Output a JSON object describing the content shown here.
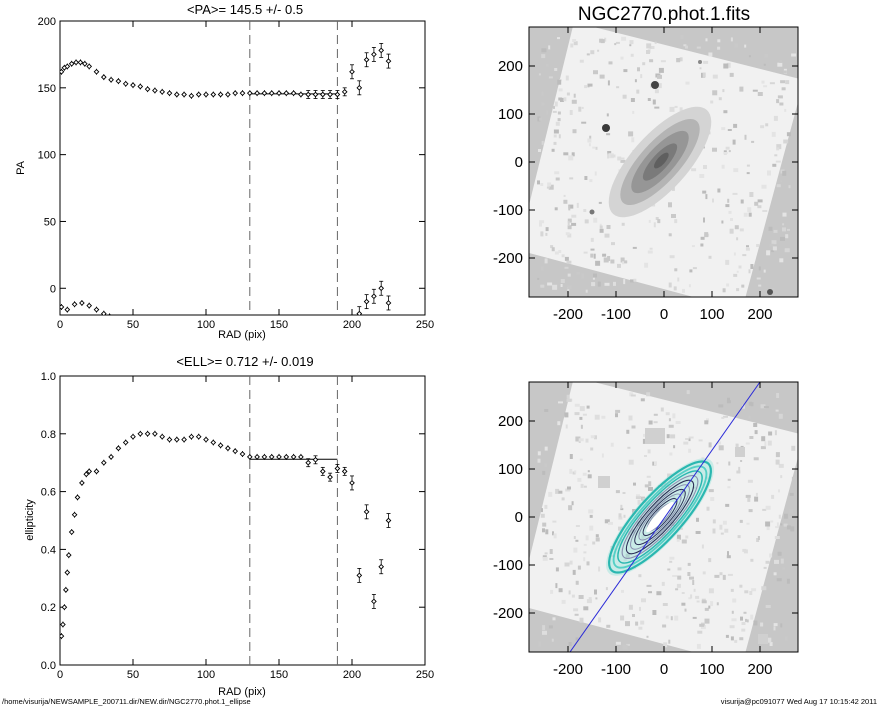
{
  "footer": {
    "path": "/home/visurija/NEWSAMPLE_200711.dir/NEW.dir/NGC2770.phot.1_ellipse",
    "user_stamp": "visurija@pc091077  Wed Aug 17 10:15:42 2011"
  },
  "image_panels": {
    "title": "NGC2770.phot.1.fits",
    "x_ticks": [
      "-200",
      "-100",
      "0",
      "100",
      "200"
    ],
    "y_ticks": [
      "200",
      "100",
      "0",
      "-100",
      "-200"
    ],
    "contour_colors": [
      "#2ab7b0",
      "#55d0c6",
      "#8a8fb0",
      "#2b2d55"
    ],
    "major_axis_line_color": "#2a2ad8"
  },
  "chart_data": [
    {
      "type": "scatter",
      "title": "<PA>= 145.5 +/-   0.5",
      "xlabel": "RAD (pix)",
      "ylabel": "PA",
      "xlim": [
        0,
        250
      ],
      "ylim": [
        -20,
        200
      ],
      "x_ticks": [
        "0",
        "50",
        "100",
        "150",
        "200",
        "250"
      ],
      "y_ticks": [
        "0",
        "50",
        "100",
        "150",
        "200"
      ],
      "vlines": [
        130,
        190
      ],
      "fit_line": {
        "x": [
          130,
          190
        ],
        "y": [
          145.5,
          145.5
        ]
      },
      "series": [
        {
          "x": [
            1,
            3,
            5,
            8,
            11,
            14,
            17,
            20,
            25,
            30,
            35,
            40,
            45,
            50,
            55,
            60,
            65,
            70,
            75,
            80,
            85,
            90,
            95,
            100,
            105,
            110,
            115,
            120,
            125,
            130,
            135,
            140,
            145,
            150,
            155,
            160,
            165,
            170,
            175,
            180,
            185,
            190
          ],
          "y": [
            162,
            165,
            166,
            168,
            169,
            169,
            168,
            166,
            162,
            158,
            156,
            155,
            153,
            152,
            151,
            149,
            148,
            147,
            146,
            145,
            145,
            144,
            145,
            145,
            145,
            145,
            145,
            146,
            146,
            146,
            146,
            146,
            146,
            146,
            146,
            146,
            145,
            145,
            145,
            145,
            145,
            145
          ]
        },
        {
          "x": [
            195,
            200,
            205,
            210,
            215,
            220,
            225
          ],
          "y": [
            147,
            162,
            150,
            171,
            175,
            178,
            170
          ]
        },
        {
          "x": [
            1,
            5,
            10,
            15,
            20,
            25,
            30,
            34
          ],
          "y": [
            -14,
            -16,
            -12,
            -11,
            -13,
            -16,
            -19,
            -21
          ]
        },
        {
          "x": [
            205,
            210,
            215,
            220,
            225
          ],
          "y": [
            -19,
            -10,
            -6,
            0,
            -11
          ]
        }
      ]
    },
    {
      "type": "scatter",
      "title": "<ELL>= 0.712 +/-  0.019",
      "xlabel": "RAD (pix)",
      "ylabel": "ellipticity",
      "xlim": [
        0,
        250
      ],
      "ylim": [
        0.0,
        1.0
      ],
      "x_ticks": [
        "0",
        "50",
        "100",
        "150",
        "200",
        "250"
      ],
      "y_ticks": [
        "0.0",
        "0.2",
        "0.4",
        "0.6",
        "0.8",
        "1.0"
      ],
      "vlines": [
        130,
        190
      ],
      "fit_line": {
        "x": [
          130,
          190
        ],
        "y": [
          0.712,
          0.712
        ]
      },
      "series": [
        {
          "x": [
            1,
            2,
            3,
            4,
            5,
            6,
            8,
            10,
            12,
            15,
            18,
            20,
            25,
            30,
            35,
            40,
            45,
            50,
            55,
            60,
            65,
            70,
            75,
            80,
            85,
            90,
            95,
            100,
            105,
            110,
            115,
            120,
            125,
            130,
            135,
            140,
            145,
            150,
            155,
            160,
            165
          ],
          "y": [
            0.1,
            0.14,
            0.2,
            0.26,
            0.32,
            0.38,
            0.46,
            0.52,
            0.58,
            0.63,
            0.66,
            0.67,
            0.67,
            0.7,
            0.72,
            0.75,
            0.77,
            0.79,
            0.8,
            0.8,
            0.8,
            0.79,
            0.78,
            0.78,
            0.78,
            0.79,
            0.79,
            0.78,
            0.77,
            0.76,
            0.75,
            0.74,
            0.73,
            0.72,
            0.72,
            0.72,
            0.72,
            0.72,
            0.72,
            0.72,
            0.72
          ]
        },
        {
          "x": [
            170,
            175,
            180,
            185,
            190,
            195,
            200,
            205,
            210,
            215,
            220,
            225
          ],
          "y": [
            0.7,
            0.71,
            0.67,
            0.65,
            0.68,
            0.67,
            0.63,
            0.31,
            0.53,
            0.22,
            0.34,
            0.5
          ]
        }
      ]
    }
  ]
}
